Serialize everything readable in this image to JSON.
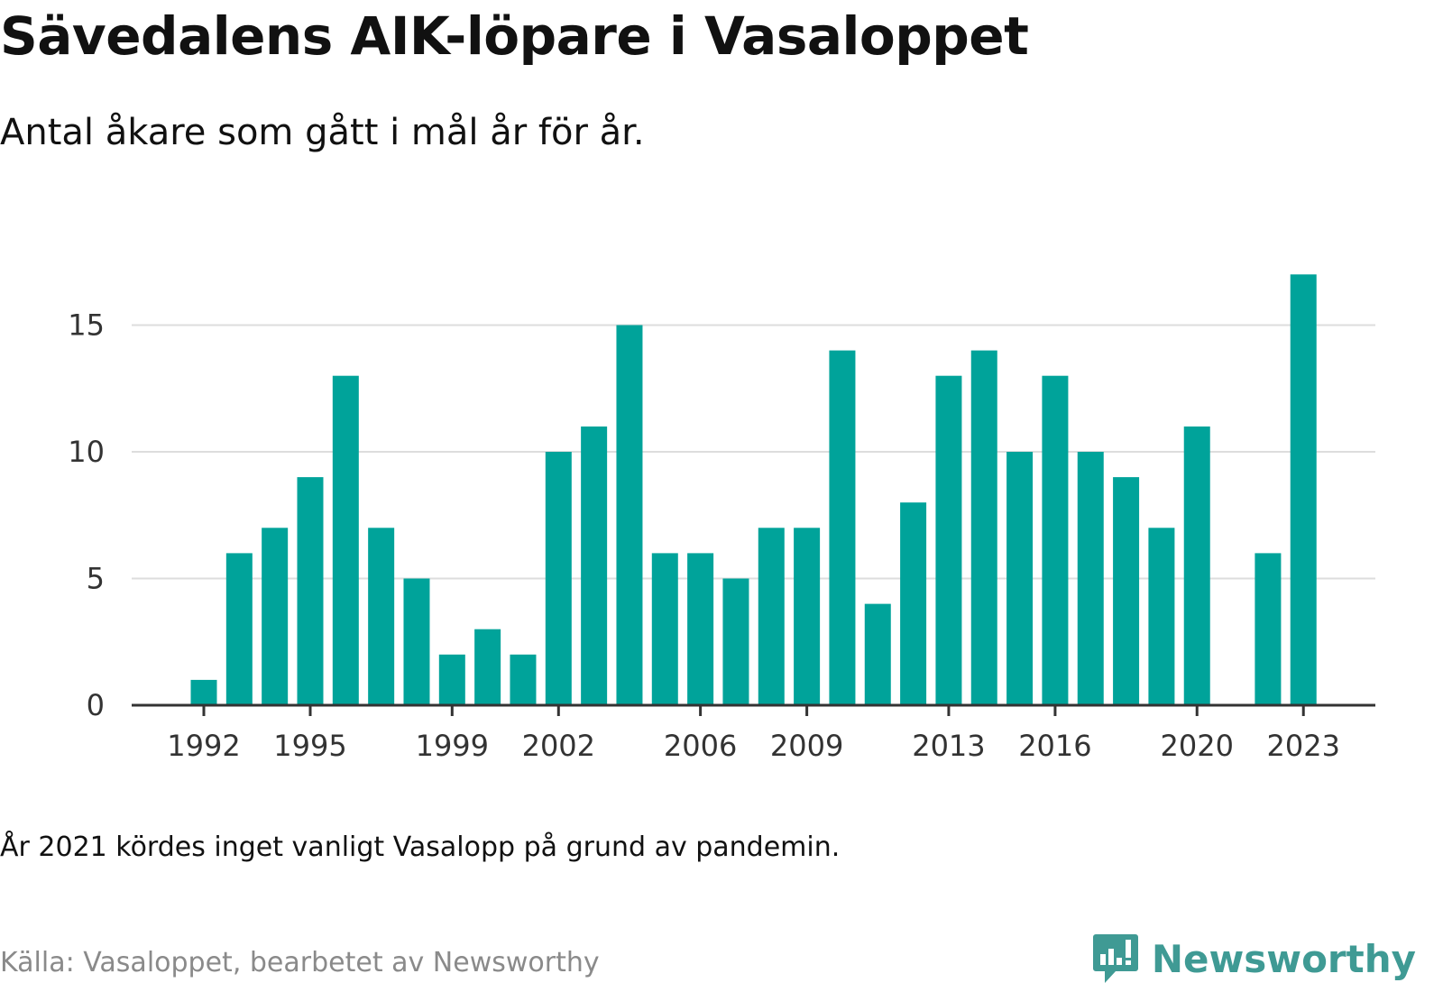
{
  "title": "Sävedalens AIK-löpare i Vasaloppet",
  "subtitle": "Antal åkare som gått i mål år för år.",
  "note": "År 2021 kördes inget vanligt Vasalopp på grund av pandemin.",
  "source": "Källa: Vasaloppet, bearbetet av Newsworthy",
  "brand": {
    "name": "Newsworthy",
    "icon": "newsworthy-logo-icon",
    "color": "#3f9a94"
  },
  "colors": {
    "bar": "#00a39a",
    "grid": "#dddddd",
    "axis": "#333333",
    "text": "#111111",
    "muted": "#8a8a8a"
  },
  "chart_data": {
    "type": "bar",
    "title": "Sävedalens AIK-löpare i Vasaloppet",
    "subtitle": "Antal åkare som gått i mål år för år.",
    "xlabel": "",
    "ylabel": "",
    "x": [
      1992,
      1993,
      1994,
      1995,
      1996,
      1997,
      1998,
      1999,
      2000,
      2001,
      2002,
      2003,
      2004,
      2005,
      2006,
      2007,
      2008,
      2009,
      2010,
      2011,
      2012,
      2013,
      2014,
      2015,
      2016,
      2017,
      2018,
      2019,
      2020,
      2021,
      2022,
      2023
    ],
    "values": [
      1,
      6,
      7,
      9,
      13,
      7,
      5,
      2,
      3,
      2,
      10,
      11,
      15,
      6,
      6,
      5,
      7,
      7,
      14,
      4,
      8,
      13,
      14,
      10,
      13,
      10,
      9,
      7,
      11,
      null,
      6,
      17
    ],
    "x_ticks": [
      "1992",
      "1995",
      "1999",
      "2002",
      "2006",
      "2009",
      "2013",
      "2016",
      "2020",
      "2023"
    ],
    "y_ticks": [
      "0",
      "5",
      "10",
      "15"
    ],
    "ylim": [
      0,
      17
    ],
    "grid": true,
    "legend": "none"
  }
}
